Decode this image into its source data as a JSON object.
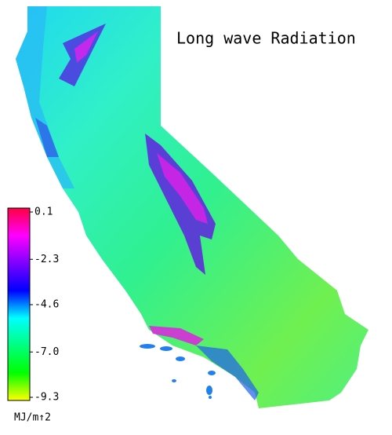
{
  "title": "Long wave Radiation",
  "colorbar": {
    "clim": [
      -9.3,
      0.1
    ],
    "ticks": [
      0.1,
      -2.3,
      -4.6,
      {
        "value": -7.0,
        "label": "-7.0"
      },
      -9.3
    ],
    "colors": [
      "#ff0040",
      "#ff00ff",
      "#7f00ff",
      "#0000ff",
      "#00ffff",
      "#00ff7f",
      "#00ff00",
      "#ffff00"
    ],
    "unit": "MJ/m↑2"
  }
}
